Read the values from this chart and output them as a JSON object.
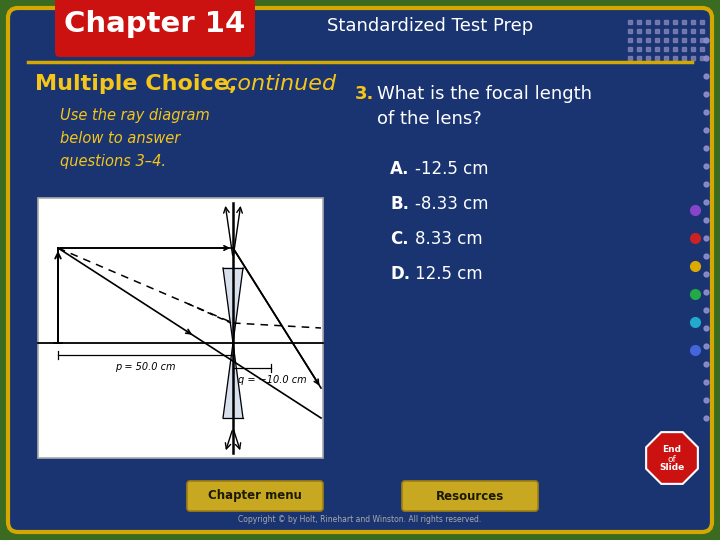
{
  "title_chapter": "Chapter 14",
  "title_section": "Standardized Test Prep",
  "section_header": "Multiple Choice,",
  "section_header_italic": " continued",
  "instruction_text": "Use the ray diagram\nbelow to answer\nquestions 3–4.",
  "question_number": "3.",
  "question_text": "What is the focal length\nof the lens?",
  "choices": [
    {
      "label": "A.",
      "text": "-12.5 cm"
    },
    {
      "label": "B.",
      "text": "-8.33 cm"
    },
    {
      "label": "C.",
      "text": "8.33 cm"
    },
    {
      "label": "D.",
      "text": "12.5 cm"
    }
  ],
  "diagram_label1": "p = 50.0 cm",
  "diagram_label2": "q = −10.0 cm",
  "footer_left": "Chapter menu",
  "footer_right": "Resources",
  "footer_copyright": "Copyright © by Holt, Rinehart and Winston. All rights reserved.",
  "bg_outer": "#3a6b20",
  "bg_main": "#1a3472",
  "bg_main_border": "#d4a800",
  "chapter_box_color": "#cc1111",
  "chapter_text_color": "#ffffff",
  "section_title_color": "#f5c518",
  "body_text_color": "#ffffff",
  "choice_label_color": "#ffffff",
  "diagram_bg": "#ffffff",
  "footer_btn_color": "#c8a820",
  "end_slide_color": "#cc1111",
  "dots_color": "#8888bb",
  "side_dots_color": "#9090cc"
}
